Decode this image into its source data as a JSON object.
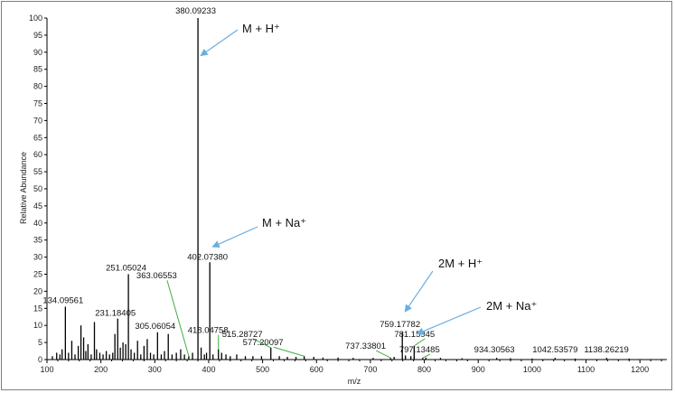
{
  "chart_data": {
    "type": "bar",
    "xlabel": "m/z",
    "ylabel": "Relative Abundance",
    "xlim": [
      100,
      1250
    ],
    "ylim": [
      0,
      100
    ],
    "x_ticks": [
      100,
      200,
      300,
      400,
      500,
      600,
      700,
      800,
      900,
      1000,
      1100,
      1200
    ],
    "y_ticks": [
      0,
      5,
      10,
      15,
      20,
      25,
      30,
      35,
      40,
      45,
      50,
      55,
      60,
      65,
      70,
      75,
      80,
      85,
      90,
      95,
      100
    ],
    "bar_color": "#000000",
    "leader_color": "#3cb043",
    "arrow_color": "#6aaee0",
    "labeled_peaks": [
      {
        "mz": 134.09561,
        "abundance": 15.5,
        "label": "134.09561"
      },
      {
        "mz": 231.18405,
        "abundance": 12.0,
        "label": "231.18405"
      },
      {
        "mz": 251.05024,
        "abundance": 25.0,
        "label": "251.05024"
      },
      {
        "mz": 305.06054,
        "abundance": 8.0,
        "label": "305.06054"
      },
      {
        "mz": 363.06553,
        "abundance": 1.0,
        "label": "363.06553"
      },
      {
        "mz": 380.09233,
        "abundance": 100.0,
        "label": "380.09233"
      },
      {
        "mz": 402.0738,
        "abundance": 28.5,
        "label": "402.07380"
      },
      {
        "mz": 418.04758,
        "abundance": 3.0,
        "label": "418.04758"
      },
      {
        "mz": 515.28727,
        "abundance": 3.5,
        "label": "515.28727"
      },
      {
        "mz": 577.20097,
        "abundance": 1.0,
        "label": "577.20097"
      },
      {
        "mz": 737.33801,
        "abundance": 0.5,
        "label": "737.33801"
      },
      {
        "mz": 759.17782,
        "abundance": 8.0,
        "label": "759.17782"
      },
      {
        "mz": 781.15945,
        "abundance": 4.0,
        "label": "781.15945"
      },
      {
        "mz": 797.13485,
        "abundance": 0.5,
        "label": "797.13485"
      },
      {
        "mz": 934.30563,
        "abundance": 0.5,
        "label": "934.30563"
      },
      {
        "mz": 1042.53579,
        "abundance": 0.5,
        "label": "1042.53579"
      },
      {
        "mz": 1138.26219,
        "abundance": 0.5,
        "label": "1138.26219"
      }
    ],
    "minor_peaks": [
      {
        "mz": 110,
        "abundance": 1.0
      },
      {
        "mz": 118,
        "abundance": 2.0
      },
      {
        "mz": 124,
        "abundance": 1.5
      },
      {
        "mz": 128,
        "abundance": 3.0
      },
      {
        "mz": 140,
        "abundance": 2.0
      },
      {
        "mz": 146,
        "abundance": 5.5
      },
      {
        "mz": 152,
        "abundance": 1.5
      },
      {
        "mz": 158,
        "abundance": 4.0
      },
      {
        "mz": 163,
        "abundance": 10.0
      },
      {
        "mz": 168,
        "abundance": 6.5
      },
      {
        "mz": 172,
        "abundance": 2.5
      },
      {
        "mz": 176,
        "abundance": 4.5
      },
      {
        "mz": 182,
        "abundance": 1.5
      },
      {
        "mz": 188,
        "abundance": 11.0
      },
      {
        "mz": 192,
        "abundance": 3.0
      },
      {
        "mz": 198,
        "abundance": 2.0
      },
      {
        "mz": 204,
        "abundance": 1.5
      },
      {
        "mz": 210,
        "abundance": 2.5
      },
      {
        "mz": 216,
        "abundance": 1.5
      },
      {
        "mz": 222,
        "abundance": 2.0
      },
      {
        "mz": 226,
        "abundance": 7.5
      },
      {
        "mz": 236,
        "abundance": 3.5
      },
      {
        "mz": 241,
        "abundance": 5.0
      },
      {
        "mz": 246,
        "abundance": 4.5
      },
      {
        "mz": 256,
        "abundance": 3.0
      },
      {
        "mz": 262,
        "abundance": 2.0
      },
      {
        "mz": 268,
        "abundance": 5.5
      },
      {
        "mz": 274,
        "abundance": 1.5
      },
      {
        "mz": 280,
        "abundance": 4.0
      },
      {
        "mz": 286,
        "abundance": 6.0
      },
      {
        "mz": 292,
        "abundance": 2.0
      },
      {
        "mz": 298,
        "abundance": 1.5
      },
      {
        "mz": 312,
        "abundance": 1.5
      },
      {
        "mz": 318,
        "abundance": 2.5
      },
      {
        "mz": 325,
        "abundance": 7.5
      },
      {
        "mz": 332,
        "abundance": 1.5
      },
      {
        "mz": 340,
        "abundance": 2.0
      },
      {
        "mz": 348,
        "abundance": 3.0
      },
      {
        "mz": 355,
        "abundance": 1.5
      },
      {
        "mz": 370,
        "abundance": 2.0
      },
      {
        "mz": 386,
        "abundance": 3.5
      },
      {
        "mz": 392,
        "abundance": 1.5
      },
      {
        "mz": 396,
        "abundance": 2.0
      },
      {
        "mz": 408,
        "abundance": 1.5
      },
      {
        "mz": 424,
        "abundance": 2.0
      },
      {
        "mz": 432,
        "abundance": 1.5
      },
      {
        "mz": 440,
        "abundance": 1.0
      },
      {
        "mz": 452,
        "abundance": 1.5
      },
      {
        "mz": 468,
        "abundance": 1.0
      },
      {
        "mz": 482,
        "abundance": 1.0
      },
      {
        "mz": 498,
        "abundance": 1.0
      },
      {
        "mz": 531,
        "abundance": 1.0
      },
      {
        "mz": 546,
        "abundance": 0.8
      },
      {
        "mz": 562,
        "abundance": 0.8
      },
      {
        "mz": 595,
        "abundance": 0.8
      },
      {
        "mz": 612,
        "abundance": 0.6
      },
      {
        "mz": 640,
        "abundance": 0.6
      },
      {
        "mz": 668,
        "abundance": 0.5
      },
      {
        "mz": 705,
        "abundance": 0.5
      },
      {
        "mz": 744,
        "abundance": 0.8
      },
      {
        "mz": 765,
        "abundance": 1.2
      },
      {
        "mz": 775,
        "abundance": 1.0
      },
      {
        "mz": 803,
        "abundance": 0.6
      },
      {
        "mz": 830,
        "abundance": 0.5
      },
      {
        "mz": 870,
        "abundance": 0.4
      },
      {
        "mz": 960,
        "abundance": 0.4
      },
      {
        "mz": 1000,
        "abundance": 0.3
      },
      {
        "mz": 1080,
        "abundance": 0.3
      },
      {
        "mz": 1180,
        "abundance": 0.3
      }
    ],
    "annotations": [
      {
        "text": "M + H⁺",
        "target_mz": 380.09233,
        "target_abundance": 89
      },
      {
        "text": "M + Na⁺",
        "target_mz": 402.0738,
        "target_abundance": 33
      },
      {
        "text": "2M + H⁺",
        "target_mz": 759.17782,
        "target_abundance": 14
      },
      {
        "text": "2M + Na⁺",
        "target_mz": 781.15945,
        "target_abundance": 7.5
      }
    ]
  }
}
